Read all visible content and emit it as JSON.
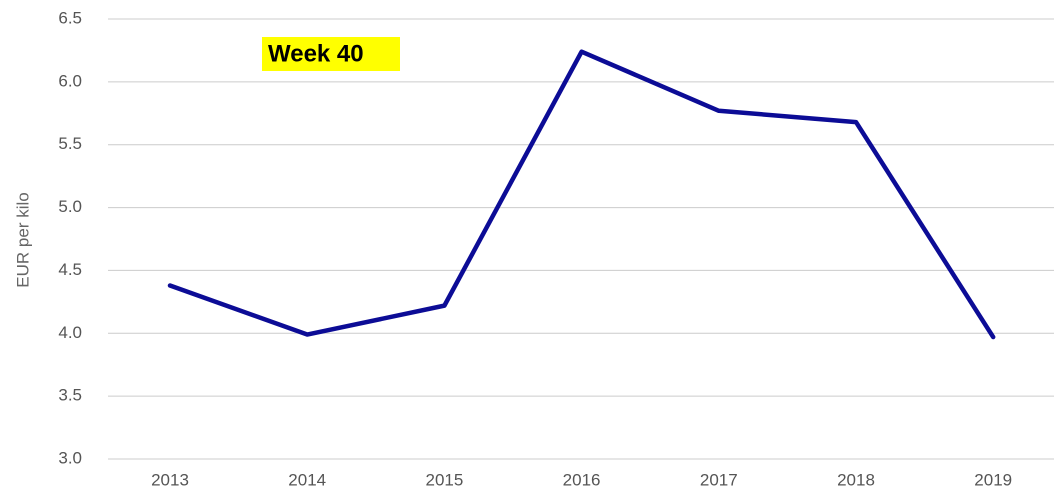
{
  "chart_data": {
    "type": "line",
    "annotation": "Week 40",
    "y_label": "EUR per kilo",
    "categories": [
      "2013",
      "2014",
      "2015",
      "2016",
      "2017",
      "2018",
      "2019"
    ],
    "series": [
      {
        "color": "#0c0c96",
        "values": [
          4.38,
          3.99,
          4.22,
          6.24,
          5.77,
          5.68,
          3.97
        ]
      }
    ],
    "ylim": [
      3.0,
      6.5
    ],
    "yticks": [
      {
        "value": 3.0,
        "label": "3.0"
      },
      {
        "value": 3.5,
        "label": "3.5"
      },
      {
        "value": 4.0,
        "label": "4.0"
      },
      {
        "value": 4.5,
        "label": "4.5"
      },
      {
        "value": 5.0,
        "label": "5.0"
      },
      {
        "value": 5.5,
        "label": "5.5"
      },
      {
        "value": 6.0,
        "label": "6.0"
      },
      {
        "value": 6.5,
        "label": "6.5"
      }
    ],
    "grid": true
  }
}
